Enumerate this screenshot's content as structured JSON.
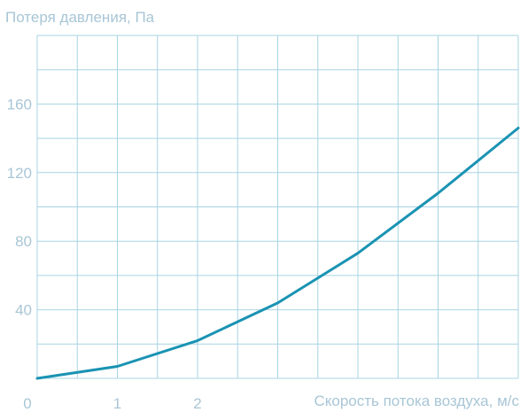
{
  "chart_data": {
    "type": "line",
    "title": "",
    "ylabel": "Потеря давления, Па",
    "xlabel": "Скорость потока воздуха, м/с",
    "x_ticks": [
      {
        "value": 0,
        "label": "0"
      },
      {
        "value": 1,
        "label": "1"
      },
      {
        "value": 2,
        "label": "2"
      }
    ],
    "y_ticks": [
      {
        "value": 40,
        "label": "40"
      },
      {
        "value": 80,
        "label": "80"
      },
      {
        "value": 120,
        "label": "120"
      },
      {
        "value": 160,
        "label": "160"
      }
    ],
    "xlim": [
      0,
      6
    ],
    "ylim": [
      0,
      200
    ],
    "grid": true,
    "series": [
      {
        "x": [
          0,
          1,
          2,
          3,
          4,
          5,
          6
        ],
        "y": [
          0,
          7,
          22,
          44,
          73,
          108,
          146
        ]
      }
    ],
    "colors": {
      "line": "#1a93b3",
      "grid": "#a8d4e3",
      "text": "#a8c6d6"
    }
  }
}
